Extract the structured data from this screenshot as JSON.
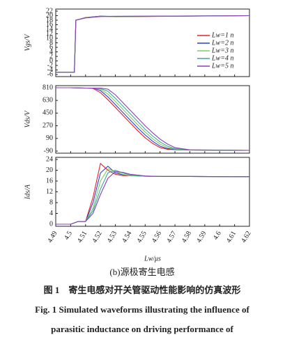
{
  "chart_data": [
    {
      "type": "line",
      "ylabel": "Vgs/V",
      "legend": "upper right",
      "xlim": [
        4.49,
        4.62
      ],
      "xticks": [
        4.49,
        4.5,
        4.51,
        4.52,
        4.53,
        4.54,
        4.55,
        4.56,
        4.57,
        4.58,
        4.59,
        4.6,
        4.61,
        4.62
      ],
      "ylim": [
        -6,
        22
      ],
      "yticks": [
        22,
        20,
        18,
        16,
        14,
        12,
        10,
        8,
        6,
        4,
        2,
        0,
        -2,
        -4,
        -6
      ],
      "x": [
        4.49,
        4.5025,
        4.5035,
        4.51,
        4.52,
        4.53,
        4.62
      ],
      "series": [
        {
          "name": "Lw=1 n",
          "color": "#e8202a",
          "values": [
            -5,
            -5,
            18,
            19.2,
            19.8,
            19.5,
            20
          ]
        },
        {
          "name": "Lw=2 n",
          "color": "#2b3fd6",
          "values": [
            -5,
            -5,
            18,
            19.1,
            19.8,
            19.6,
            20
          ]
        },
        {
          "name": "Lw=3 n",
          "color": "#7ccf5a",
          "values": [
            -5,
            -5,
            18,
            19.1,
            19.7,
            19.6,
            20
          ]
        },
        {
          "name": "Lw=4 n",
          "color": "#3aa6a0",
          "values": [
            -5,
            -5,
            18,
            19,
            19.7,
            19.7,
            20
          ]
        },
        {
          "name": "Lw=5 n",
          "color": "#8a3fb5",
          "values": [
            -5,
            -5,
            18,
            19,
            19.6,
            19.7,
            20
          ]
        }
      ]
    },
    {
      "type": "line",
      "ylabel": "Vds/V",
      "xlim": [
        4.49,
        4.62
      ],
      "xticks": [
        4.49,
        4.5,
        4.51,
        4.52,
        4.53,
        4.54,
        4.55,
        4.56,
        4.57,
        4.58,
        4.59,
        4.6,
        4.61,
        4.62
      ],
      "ylim": [
        -90,
        810
      ],
      "yticks": [
        810,
        630,
        450,
        270,
        90,
        -90
      ],
      "x": [
        4.49,
        4.5,
        4.51,
        4.515,
        4.52,
        4.525,
        4.53,
        4.535,
        4.54,
        4.545,
        4.55,
        4.555,
        4.56,
        4.565,
        4.57,
        4.58,
        4.62
      ],
      "series": [
        {
          "color": "#e8202a",
          "values": [
            810,
            810,
            805,
            800,
            740,
            640,
            530,
            420,
            310,
            200,
            100,
            20,
            -40,
            -65,
            -70,
            -75,
            -80
          ]
        },
        {
          "color": "#2b3fd6",
          "values": [
            810,
            810,
            805,
            805,
            770,
            680,
            570,
            460,
            350,
            240,
            140,
            50,
            -20,
            -55,
            -68,
            -75,
            -80
          ]
        },
        {
          "color": "#7ccf5a",
          "values": [
            810,
            810,
            805,
            805,
            790,
            720,
            615,
            505,
            395,
            285,
            180,
            85,
            10,
            -40,
            -62,
            -75,
            -80
          ]
        },
        {
          "color": "#3aa6a0",
          "values": [
            810,
            810,
            805,
            805,
            800,
            760,
            660,
            550,
            440,
            330,
            220,
            125,
            40,
            -20,
            -55,
            -75,
            -80
          ]
        },
        {
          "color": "#8a3fb5",
          "values": [
            810,
            810,
            805,
            805,
            805,
            790,
            710,
            600,
            490,
            380,
            270,
            170,
            80,
            10,
            -40,
            -72,
            -80
          ]
        }
      ]
    },
    {
      "type": "line",
      "ylabel": "Ids/A",
      "xlabel": "Lw/μs",
      "xlim": [
        4.49,
        4.62
      ],
      "xticks": [
        4.49,
        4.5,
        4.51,
        4.52,
        4.53,
        4.54,
        4.55,
        4.56,
        4.57,
        4.58,
        4.59,
        4.6,
        4.61,
        4.62
      ],
      "ylim": [
        0,
        24
      ],
      "yticks": [
        24,
        20,
        16,
        12,
        8,
        4,
        0
      ],
      "x": [
        4.49,
        4.5,
        4.505,
        4.51,
        4.515,
        4.52,
        4.525,
        4.53,
        4.535,
        4.54,
        4.55,
        4.56,
        4.58,
        4.62
      ],
      "series": [
        {
          "color": "#e8202a",
          "values": [
            0,
            0,
            1,
            1,
            10,
            22.5,
            20,
            18.5,
            18,
            18,
            17.8,
            17.7,
            17.7,
            17.6
          ]
        },
        {
          "color": "#2b3fd6",
          "values": [
            0,
            0,
            1,
            1,
            8,
            19,
            21.5,
            19,
            18.3,
            18,
            17.8,
            17.7,
            17.7,
            17.6
          ]
        },
        {
          "color": "#7ccf5a",
          "values": [
            0,
            0,
            1,
            1,
            6,
            16,
            20.5,
            19.5,
            18.5,
            18,
            17.8,
            17.7,
            17.7,
            17.6
          ]
        },
        {
          "color": "#3aa6a0",
          "values": [
            0,
            0,
            1,
            1,
            5,
            13,
            19,
            20,
            19,
            18.2,
            17.8,
            17.7,
            17.7,
            17.6
          ]
        },
        {
          "color": "#8a3fb5",
          "values": [
            0,
            0,
            1,
            1,
            4,
            11,
            17,
            19.5,
            19.2,
            18.5,
            17.9,
            17.7,
            17.7,
            17.6
          ]
        }
      ]
    }
  ],
  "caption": {
    "sub": "(b)源极寄生电感",
    "zh": "图 1　寄生电感对开关管驱动性能影响的仿真波形",
    "en1": "Fig. 1 Simulated waveforms illustrating the influence of",
    "en2": "parasitic inductance on driving performance of"
  }
}
